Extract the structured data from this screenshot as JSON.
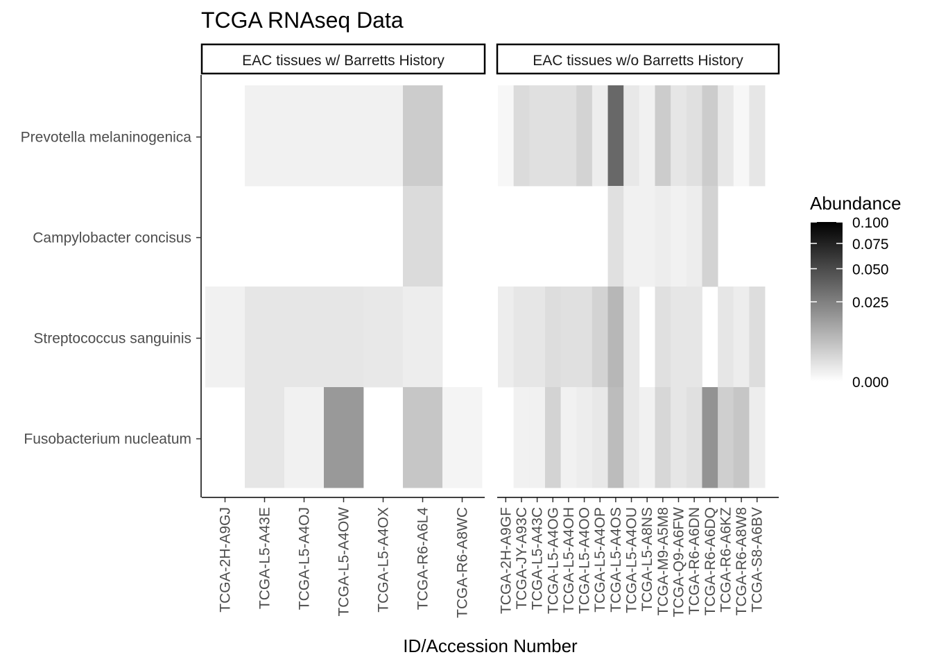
{
  "chart_data": {
    "type": "heatmap",
    "title": "TCGA RNAseq Data",
    "xlabel": "ID/Accession Number",
    "ylabel": "",
    "rows": [
      "Prevotella melaninogenica",
      "Campylobacter concisus",
      "Streptococcus sanguinis",
      "Fusobacterium nucleatum"
    ],
    "legend": {
      "title": "Abundance",
      "ticks": [
        0.1,
        0.075,
        0.05,
        0.025,
        0.0
      ],
      "tick_labels": [
        "0.100",
        "0.075",
        "0.050",
        "0.025",
        "0.000"
      ],
      "scale": "sqrt",
      "limits": [
        0,
        0.1
      ],
      "low_color": "#ffffff",
      "high_color": "#000000"
    },
    "facets": [
      {
        "label": "EAC tissues w/ Barretts History",
        "columns": [
          "TCGA-2H-A9GJ",
          "TCGA-L5-A43E",
          "TCGA-L5-A4OJ",
          "TCGA-L5-A4OW",
          "TCGA-L5-A4OX",
          "TCGA-R6-A6L4",
          "TCGA-R6-A8WC"
        ],
        "values": [
          [
            null,
            0.0003,
            0.0003,
            0.0003,
            0.0003,
            0.004,
            null
          ],
          [
            null,
            null,
            null,
            null,
            null,
            0.002,
            null
          ],
          [
            0.0003,
            0.001,
            0.001,
            0.001,
            0.0008,
            0.0005,
            null
          ],
          [
            null,
            0.001,
            0.0003,
            0.016,
            null,
            0.005,
            0.0002
          ]
        ]
      },
      {
        "label": "EAC tissues w/o Barretts History",
        "columns": [
          "TCGA-2H-A9GF",
          "TCGA-JY-A93C",
          "TCGA-L5-A43C",
          "TCGA-L5-A4OG",
          "TCGA-L5-A4OH",
          "TCGA-L5-A4OO",
          "TCGA-L5-A4OP",
          "TCGA-L5-A4OS",
          "TCGA-L5-A4OU",
          "TCGA-L5-A8NS",
          "TCGA-M9-A5M8",
          "TCGA-Q9-A6FW",
          "TCGA-R6-A6DN",
          "TCGA-R6-A6DQ",
          "TCGA-R6-A6KZ",
          "TCGA-R6-A8W8",
          "TCGA-S8-A6BV"
        ],
        "values": [
          [
            0.0001,
            0.002,
            0.0015,
            0.0015,
            0.0015,
            0.003,
            0.0005,
            0.035,
            0.0008,
            0.0003,
            0.004,
            0.001,
            0.0015,
            0.004,
            0.0008,
            0.0001,
            0.001
          ],
          [
            null,
            null,
            null,
            null,
            null,
            null,
            null,
            0.0015,
            0.0003,
            0.0003,
            0.0005,
            0.0003,
            0.0005,
            0.003,
            null,
            null,
            null
          ],
          [
            0.0005,
            0.001,
            0.001,
            0.0018,
            0.0015,
            0.0015,
            0.003,
            0.008,
            0.0008,
            null,
            0.0015,
            0.001,
            0.001,
            null,
            0.001,
            0.0005,
            0.0018
          ],
          [
            null,
            0.0003,
            0.0003,
            0.003,
            0.0003,
            0.0005,
            0.0008,
            0.007,
            0.0008,
            0.0003,
            0.0025,
            0.001,
            0.0015,
            0.018,
            0.0035,
            0.005,
            0.0005
          ]
        ]
      }
    ]
  }
}
